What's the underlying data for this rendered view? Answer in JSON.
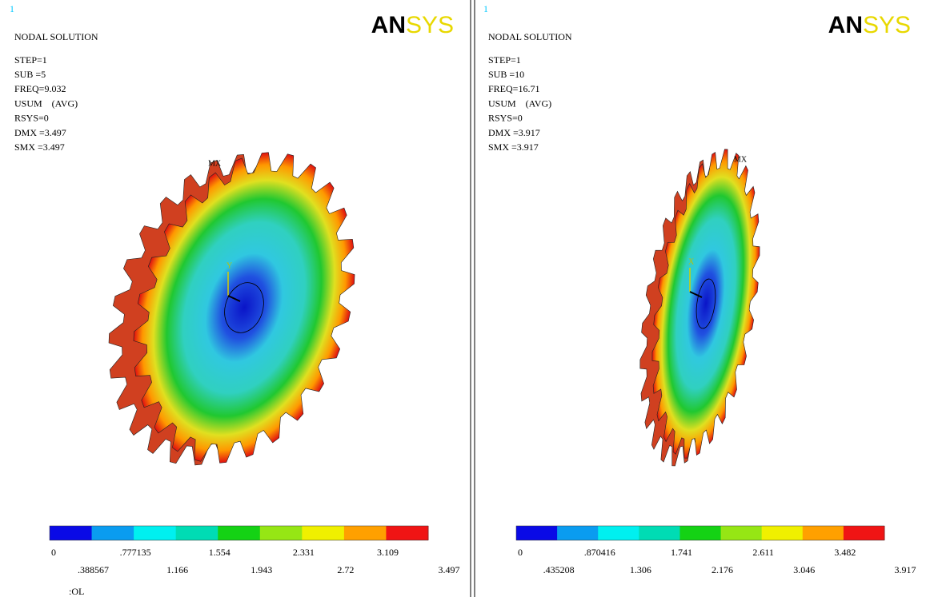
{
  "panels": [
    {
      "window_number": "1",
      "title": "NODAL SOLUTION",
      "info": [
        "STEP=1",
        "SUB =5",
        "FREQ=9.032",
        "USUM    (AVG)",
        "RSYS=0",
        "DMX =3.497",
        "SMX =3.497"
      ],
      "logo_left": "AN",
      "logo_right": "SYS",
      "max_marker": "MX",
      "axis_y": "Y",
      "legend_top": [
        "0",
        ".777135",
        "1.554",
        "2.331",
        "3.109"
      ],
      "legend_bottom": [
        ".388567",
        "1.166",
        "1.943",
        "2.72",
        "3.497"
      ]
    },
    {
      "window_number": "1",
      "title": "NODAL SOLUTION",
      "info": [
        "STEP=1",
        "SUB =10",
        "FREQ=16.71",
        "USUM    (AVG)",
        "RSYS=0",
        "DMX =3.917",
        "SMX =3.917"
      ],
      "logo_left": "AN",
      "logo_right": "SYS",
      "max_marker": "MX",
      "axis_y": "X",
      "legend_top": [
        "0",
        ".870416",
        "1.741",
        "2.611",
        "3.482"
      ],
      "legend_bottom": [
        ".435208",
        "1.306",
        "2.176",
        "3.046",
        "3.917"
      ]
    }
  ],
  "stray_text": ":OL"
}
